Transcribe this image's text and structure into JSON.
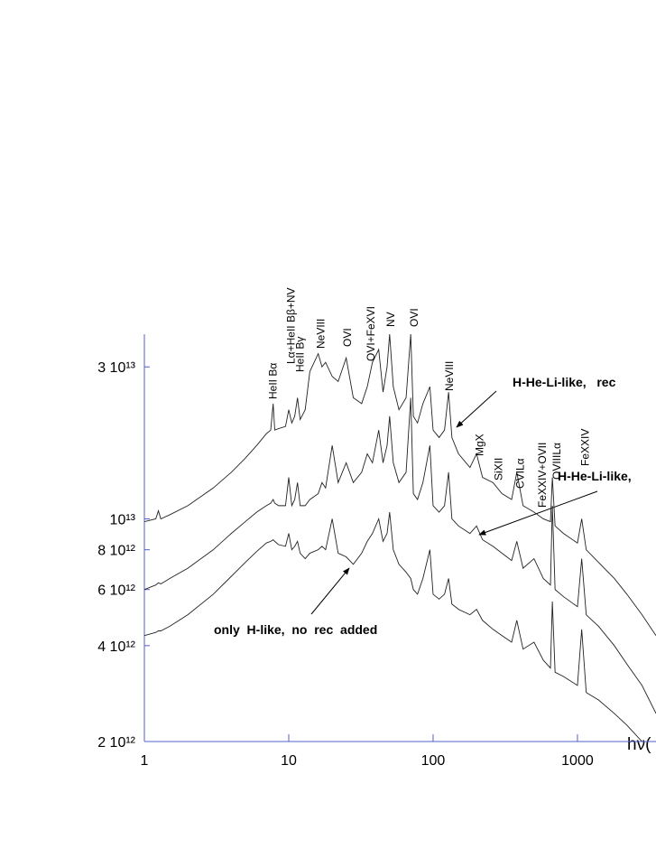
{
  "chart_data": {
    "type": "line",
    "xlabel": "hν(",
    "xscale": "log",
    "yscale": "log",
    "xlim": [
      1,
      3500
    ],
    "ylim": [
      2000000000000.0,
      38000000000000.0
    ],
    "xticks": [
      1,
      10,
      100,
      1000
    ],
    "yticks": [
      {
        "value": 2000000000000.0,
        "label": "2 10¹²"
      },
      {
        "value": 4000000000000.0,
        "label": "4 10¹²"
      },
      {
        "value": 6000000000000.0,
        "label": "6 10¹²"
      },
      {
        "value": 8000000000000.0,
        "label": "8 10¹²"
      },
      {
        "value": 10000000000000.0,
        "label": "10¹³"
      },
      {
        "value": 30000000000000.0,
        "label": "3 10¹³"
      }
    ],
    "axis_color": "#5060c8",
    "x": [
      1,
      1.2,
      1.25,
      1.3,
      1.5,
      2,
      3,
      4,
      5,
      6,
      7,
      7.5,
      7.8,
      8,
      8.5,
      9.5,
      10,
      10.5,
      11,
      11.5,
      12,
      13,
      14,
      16,
      17,
      18,
      20,
      22,
      25,
      28,
      32,
      35,
      38,
      42,
      45,
      48,
      50,
      53,
      58,
      65,
      70,
      73,
      78,
      85,
      95,
      100,
      110,
      120,
      128,
      135,
      150,
      180,
      200,
      220,
      260,
      300,
      350,
      380,
      420,
      500,
      580,
      650,
      670,
      700,
      800,
      1000,
      1070,
      1150,
      1400,
      1800,
      2200,
      2800,
      3500
    ],
    "series": [
      {
        "name": "H-He-Li-like,   rec",
        "color": "#222222",
        "values": [
          9800000000000.0,
          10000000000000.0,
          10600000000000.0,
          10000000000000.0,
          10300000000000.0,
          11000000000000.0,
          12500000000000.0,
          14000000000000.0,
          15500000000000.0,
          17000000000000.0,
          18500000000000.0,
          19000000000000.0,
          23000000000000.0,
          19000000000000.0,
          19200000000000.0,
          19500000000000.0,
          22000000000000.0,
          20000000000000.0,
          21000000000000.0,
          24000000000000.0,
          20500000000000.0,
          22000000000000.0,
          29000000000000.0,
          33000000000000.0,
          30000000000000.0,
          31000000000000.0,
          28000000000000.0,
          27000000000000.0,
          32000000000000.0,
          24000000000000.0,
          23000000000000.0,
          26000000000000.0,
          31000000000000.0,
          34000000000000.0,
          25000000000000.0,
          30000000000000.0,
          38000000000000.0,
          26000000000000.0,
          22000000000000.0,
          24000000000000.0,
          38000000000000.0,
          21000000000000.0,
          20000000000000.0,
          23000000000000.0,
          26000000000000.0,
          19000000000000.0,
          18000000000000.0,
          19000000000000.0,
          25000000000000.0,
          18000000000000.0,
          16000000000000.0,
          14500000000000.0,
          16000000000000.0,
          13500000000000.0,
          13000000000000.0,
          12000000000000.0,
          11500000000000.0,
          14000000000000.0,
          11000000000000.0,
          10500000000000.0,
          10000000000000.0,
          9800000000000.0,
          13500000000000.0,
          9500000000000.0,
          9000000000000.0,
          8400000000000.0,
          10000000000000.0,
          8000000000000.0,
          7300000000000.0,
          6500000000000.0,
          5800000000000.0,
          5000000000000.0,
          4300000000000.0
        ]
      },
      {
        "name": "H-He-Li-like,",
        "color": "#222222",
        "values": [
          6000000000000.0,
          6200000000000.0,
          6300000000000.0,
          6250000000000.0,
          6500000000000.0,
          7000000000000.0,
          8000000000000.0,
          9000000000000.0,
          9800000000000.0,
          10500000000000.0,
          11000000000000.0,
          11200000000000.0,
          11500000000000.0,
          11200000000000.0,
          11000000000000.0,
          11000000000000.0,
          13500000000000.0,
          11000000000000.0,
          11500000000000.0,
          13000000000000.0,
          11000000000000.0,
          11000000000000.0,
          11500000000000.0,
          12000000000000.0,
          13000000000000.0,
          12500000000000.0,
          17000000000000.0,
          13000000000000.0,
          15000000000000.0,
          13000000000000.0,
          14000000000000.0,
          16000000000000.0,
          15000000000000.0,
          19000000000000.0,
          15000000000000.0,
          17000000000000.0,
          21000000000000.0,
          15000000000000.0,
          13000000000000.0,
          14000000000000.0,
          24000000000000.0,
          12000000000000.0,
          11500000000000.0,
          13000000000000.0,
          17000000000000.0,
          11000000000000.0,
          10500000000000.0,
          11000000000000.0,
          14000000000000.0,
          10000000000000.0,
          9500000000000.0,
          9000000000000.0,
          9500000000000.0,
          8600000000000.0,
          8200000000000.0,
          7800000000000.0,
          7400000000000.0,
          8500000000000.0,
          7000000000000.0,
          7500000000000.0,
          6500000000000.0,
          6200000000000.0,
          11000000000000.0,
          6000000000000.0,
          5700000000000.0,
          5300000000000.0,
          7500000000000.0,
          5000000000000.0,
          4600000000000.0,
          4000000000000.0,
          3500000000000.0,
          3000000000000.0,
          2450000000000.0
        ]
      },
      {
        "name": "only  H-like,  no  rec  added",
        "color": "#222222",
        "values": [
          4300000000000.0,
          4400000000000.0,
          4450000000000.0,
          4450000000000.0,
          4600000000000.0,
          5000000000000.0,
          5800000000000.0,
          6600000000000.0,
          7300000000000.0,
          7900000000000.0,
          8400000000000.0,
          8500000000000.0,
          8600000000000.0,
          8500000000000.0,
          8300000000000.0,
          8200000000000.0,
          9000000000000.0,
          8000000000000.0,
          8200000000000.0,
          8500000000000.0,
          7800000000000.0,
          7500000000000.0,
          7800000000000.0,
          8000000000000.0,
          8200000000000.0,
          8000000000000.0,
          10000000000000.0,
          7800000000000.0,
          7600000000000.0,
          7200000000000.0,
          7800000000000.0,
          8500000000000.0,
          9000000000000.0,
          10000000000000.0,
          8500000000000.0,
          9000000000000.0,
          10500000000000.0,
          8000000000000.0,
          7200000000000.0,
          6800000000000.0,
          6500000000000.0,
          6000000000000.0,
          5800000000000.0,
          6500000000000.0,
          8000000000000.0,
          5800000000000.0,
          5600000000000.0,
          5800000000000.0,
          6500000000000.0,
          5400000000000.0,
          5200000000000.0,
          5000000000000.0,
          5200000000000.0,
          4800000000000.0,
          4500000000000.0,
          4300000000000.0,
          4100000000000.0,
          4800000000000.0,
          3900000000000.0,
          4100000000000.0,
          3600000000000.0,
          3400000000000.0,
          5500000000000.0,
          3300000000000.0,
          3200000000000.0,
          3000000000000.0,
          4500000000000.0,
          2850000000000.0,
          2700000000000.0,
          2450000000000.0,
          2250000000000.0,
          2000000000000.0,
          1900000000000.0
        ]
      }
    ],
    "annotations": [
      {
        "text": "HeII Bα",
        "x": 7.8
      },
      {
        "text": "Lα+HeII Bβ+NV",
        "x": 10.4
      },
      {
        "text": "HeII Bγ",
        "x": 12
      },
      {
        "text": "NeVIII",
        "x": 16.7
      },
      {
        "text": "OVI",
        "x": 25.5
      },
      {
        "text": "OVI+FeXVI",
        "x": 37
      },
      {
        "text": "NV",
        "x": 51
      },
      {
        "text": "OVI",
        "x": 74
      },
      {
        "text": "NeVIII",
        "x": 130
      },
      {
        "text": "MgX",
        "x": 210
      },
      {
        "text": "SiXII",
        "x": 285
      },
      {
        "text": "CVILα",
        "x": 400
      },
      {
        "text": "FeXXIV+OVII",
        "x": 570
      },
      {
        "text": "OVIIILα",
        "x": 720
      },
      {
        "text": "FeXXIV",
        "x": 1130
      }
    ]
  }
}
